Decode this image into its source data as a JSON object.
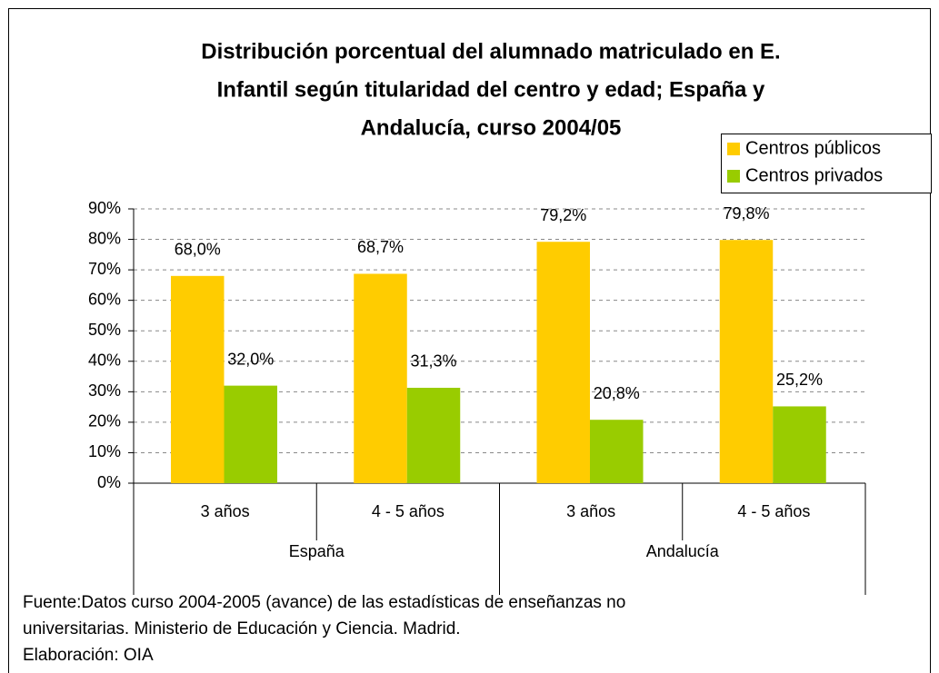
{
  "chart_data": {
    "type": "bar",
    "title": [
      "Distribución porcentual del alumnado matriculado en E.",
      "Infantil según titularidad del centro y edad; España y",
      "Andalucía, curso 2004/05"
    ],
    "categories": [
      "3 años",
      "4 - 5 años",
      "3 años",
      "4 - 5 años"
    ],
    "groups": [
      "España",
      "Andalucía"
    ],
    "series": [
      {
        "name": "Centros públicos",
        "color": "#ffcc00",
        "values": [
          68.0,
          68.7,
          79.2,
          79.8
        ],
        "value_labels": [
          "68,0%",
          "68,7%",
          "79,2%",
          "79,8%"
        ]
      },
      {
        "name": "Centros privados",
        "color": "#99cc00",
        "values": [
          32.0,
          31.3,
          20.8,
          25.2
        ],
        "value_labels": [
          "32,0%",
          "31,3%",
          "20,8%",
          "25,2%"
        ]
      }
    ],
    "ylim": [
      0,
      90
    ],
    "yticks": [
      {
        "value": 0,
        "label": "0%"
      },
      {
        "value": 10,
        "label": "10%"
      },
      {
        "value": 20,
        "label": "20%"
      },
      {
        "value": 30,
        "label": "30%"
      },
      {
        "value": 40,
        "label": "40%"
      },
      {
        "value": 50,
        "label": "50%"
      },
      {
        "value": 60,
        "label": "60%"
      },
      {
        "value": 70,
        "label": "70%"
      },
      {
        "value": 80,
        "label": "80%"
      },
      {
        "value": 90,
        "label": "90%"
      }
    ],
    "grid": true,
    "legend": "top-right",
    "notes": [
      "Fuente:Datos curso 2004-2005 (avance) de las estadísticas de enseñanzas no",
      "universitarias. Ministerio de Educación y Ciencia. Madrid.",
      "Elaboración: OIA"
    ]
  }
}
